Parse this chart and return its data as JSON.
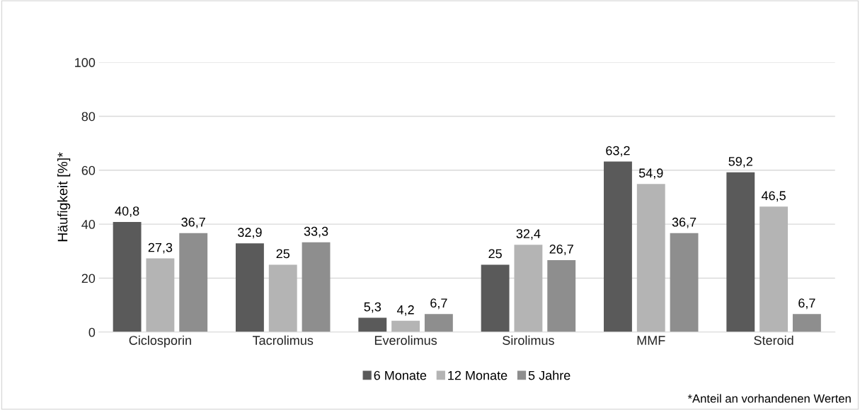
{
  "chart_data": {
    "type": "bar",
    "ylabel": "Häufigkeit [%]*",
    "categories": [
      "Ciclosporin",
      "Tacrolimus",
      "Everolimus",
      "Sirolimus",
      "MMF",
      "Steroid"
    ],
    "series": [
      {
        "name": "6 Monate",
        "color": "#5a5a5a",
        "values": [
          40.8,
          32.9,
          5.3,
          25,
          63.2,
          59.2
        ],
        "value_labels": [
          "40,8",
          "32,9",
          "5,3",
          "25",
          "63,2",
          "59,2"
        ]
      },
      {
        "name": "12 Monate",
        "color": "#b4b4b4",
        "values": [
          27.3,
          25,
          4.2,
          32.4,
          54.9,
          46.5
        ],
        "value_labels": [
          "27,3",
          "25",
          "4,2",
          "32,4",
          "54,9",
          "46,5"
        ]
      },
      {
        "name": "5 Jahre",
        "color": "#8e8e8e",
        "values": [
          36.7,
          33.3,
          6.7,
          26.7,
          36.7,
          6.7
        ],
        "value_labels": [
          "36,7",
          "33,3",
          "6,7",
          "26,7",
          "36,7",
          "6,7"
        ]
      }
    ],
    "ylim": [
      0,
      100
    ],
    "yticks": [
      0,
      20,
      40,
      60,
      80,
      100
    ],
    "grid": "y",
    "legend": "bottom",
    "annotations": [
      "*Anteil an vorhandenen Werten"
    ]
  }
}
